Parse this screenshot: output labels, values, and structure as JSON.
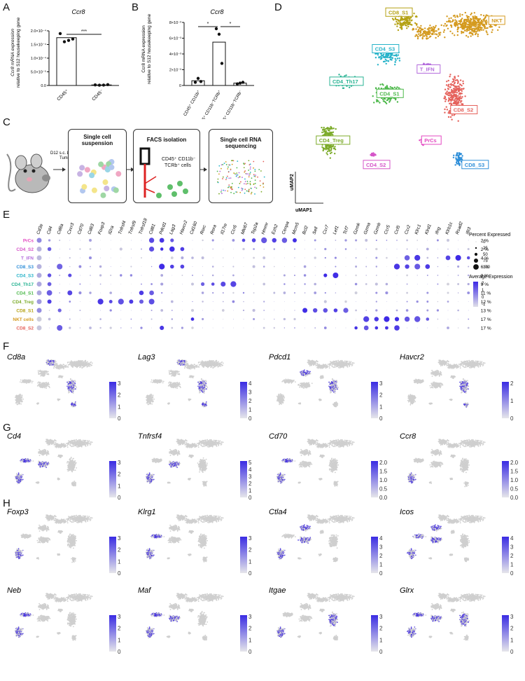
{
  "panels": {
    "A": {
      "letter": "A",
      "title": "Ccr8",
      "ylabel_line1": "Ccr8 mRNA expression",
      "ylabel_line2": "relative to S12 housekeeping gene",
      "yticks": [
        "2.0×10⁻⁴",
        "1.5×10⁻⁴",
        "1.0×10⁻⁴",
        "5.0×10⁻⁵",
        "0.0"
      ],
      "categories": [
        "CD45⁺",
        "CD45⁻"
      ],
      "significance": "***"
    },
    "B": {
      "letter": "B",
      "title": "Ccr8",
      "ylabel_line1": "Ccr8 mRNA expression",
      "ylabel_line2": "relative to S12 housekeeping gene",
      "yticks": [
        "8×10⁻³",
        "6×10⁻³",
        "4×10⁻³",
        "2×10⁻³",
        "0"
      ],
      "categories": [
        "CD45⁺ CD11b⁺",
        "CD45⁺ CD11b⁻TCRb⁺",
        "CD45⁺ CD11b⁻TCRb⁻"
      ],
      "significance": [
        "*",
        "*"
      ]
    },
    "C": {
      "letter": "C",
      "mouse_label_line1": "D12 s.c. LLC-OVA",
      "mouse_label_line2": "Tumor",
      "box1_line1": "Single cell",
      "box1_line2": "suspension",
      "box2_title": "FACS isolation",
      "box2_text_line1": "CD45⁺ CD11b⁻",
      "box2_text_line2": "TCRb⁺ cells",
      "box3_line1": "Single cell RNA",
      "box3_line2": "sequencing"
    },
    "D": {
      "letter": "D",
      "xaxis": "uMAP1",
      "yaxis": "uMAP2",
      "clusters": [
        {
          "name": "CD8_S1",
          "color": "#b5a215"
        },
        {
          "name": "NKT",
          "color": "#d49a1f"
        },
        {
          "name": "CD4_S3",
          "color": "#27b3c9"
        },
        {
          "name": "T_IFN",
          "color": "#b36bdc"
        },
        {
          "name": "CD4_Th17",
          "color": "#28b393"
        },
        {
          "name": "CD4_S1",
          "color": "#4cb84a"
        },
        {
          "name": "CD8_S2",
          "color": "#e5625c"
        },
        {
          "name": "CD4_Treg",
          "color": "#7cab2a"
        },
        {
          "name": "PrCs",
          "color": "#e348c1"
        },
        {
          "name": "CD4_S2",
          "color": "#d554c8"
        },
        {
          "name": "CD8_S3",
          "color": "#2f8fd9"
        }
      ]
    },
    "E": {
      "letter": "E",
      "genes": [
        "Cd3e",
        "Cd4",
        "Cd8a",
        "Cxcr3",
        "Cd70",
        "Cd83",
        "Foxp3",
        "Il2ra",
        "Tnfrsf4",
        "Tnfrsf9",
        "Tnfrsf18",
        "Cd81",
        "Pdcd1",
        "Lag3",
        "Havcr2",
        "Cd160",
        "Rorc",
        "Rora",
        "Il17re",
        "Ccr6",
        "Mki67",
        "Top2a",
        "Hmmr",
        "Ezh2",
        "Cenpa",
        "Mcm5",
        "Bcl2",
        "Sell",
        "Ccr7",
        "Lef1",
        "Tcf7",
        "Gzmk",
        "Gzma",
        "Gzmb",
        "Ccr5",
        "Ccl5",
        "Ccr2",
        "Klrc1",
        "Klrd1",
        "Ifng",
        "Klrb1c",
        "Rsad2",
        "Ifit3"
      ],
      "rows": [
        {
          "name": "PrCs",
          "color": "#e348c1",
          "pct": "2 %"
        },
        {
          "name": "CD4_S2",
          "color": "#d554c8",
          "pct": "2 %"
        },
        {
          "name": "T_IFN",
          "color": "#b36bdc",
          "pct": "4 %"
        },
        {
          "name": "CD8_S3",
          "color": "#2f8fd9",
          "pct": "6 %"
        },
        {
          "name": "CD4_S3",
          "color": "#27b3c9",
          "pct": "8 %"
        },
        {
          "name": "CD4_Th17",
          "color": "#28b393",
          "pct": "9 %"
        },
        {
          "name": "CD4_S1",
          "color": "#4cb84a",
          "pct": "11 %"
        },
        {
          "name": "CD4_Treg",
          "color": "#7cab2a",
          "pct": "12 %"
        },
        {
          "name": "CD8_S1",
          "color": "#b5a215",
          "pct": "13 %"
        },
        {
          "name": "NKT cells",
          "color": "#d49a1f",
          "pct": "17 %"
        },
        {
          "name": "CD8_S2",
          "color": "#e5625c",
          "pct": "17 %"
        }
      ],
      "legend_pct_title": "Percent Expressed",
      "legend_pct_values": [
        "0",
        "25",
        "50",
        "75",
        "100"
      ],
      "legend_avg_title": "Average Expression",
      "legend_avg_values": [
        "2",
        "1",
        "0",
        "-1"
      ]
    },
    "F": {
      "letter": "F",
      "genes": [
        {
          "name": "Cd8a",
          "ticks": [
            "3",
            "2",
            "1",
            "0"
          ]
        },
        {
          "name": "Lag3",
          "ticks": [
            "4",
            "3",
            "2",
            "1",
            "0"
          ]
        },
        {
          "name": "Pdcd1",
          "ticks": [
            "3",
            "2",
            "1",
            "0"
          ]
        },
        {
          "name": "Havcr2",
          "ticks": [
            "2",
            "1",
            "0"
          ]
        }
      ]
    },
    "G": {
      "letter": "G",
      "genes": [
        {
          "name": "Cd4",
          "ticks": [
            "3",
            "2",
            "1",
            "0"
          ]
        },
        {
          "name": "Tnfrsf4",
          "ticks": [
            "5",
            "4",
            "3",
            "2",
            "1",
            "0"
          ]
        },
        {
          "name": "Cd70",
          "ticks": [
            "2.0",
            "1.5",
            "1.0",
            "0.5",
            "0.0"
          ]
        },
        {
          "name": "Ccr8",
          "ticks": [
            "2.0",
            "1.5",
            "1.0",
            "0.5",
            "0.0"
          ]
        }
      ]
    },
    "H": {
      "letter": "H",
      "genes": [
        {
          "name": "Foxp3",
          "ticks": [
            "3",
            "2",
            "1",
            "0"
          ]
        },
        {
          "name": "Klrg1",
          "ticks": [
            "3",
            "2",
            "1",
            "0"
          ]
        },
        {
          "name": "Ctla4",
          "ticks": [
            "4",
            "3",
            "2",
            "1",
            "0"
          ]
        },
        {
          "name": "Icos",
          "ticks": [
            "4",
            "3",
            "2",
            "1",
            "0"
          ]
        },
        {
          "name": "Neb",
          "ticks": [
            "3",
            "2",
            "1",
            "0"
          ]
        },
        {
          "name": "Maf",
          "ticks": [
            "3",
            "2",
            "1",
            "0"
          ]
        },
        {
          "name": "Itgae",
          "ticks": [
            "3",
            "2",
            "1",
            "0"
          ]
        },
        {
          "name": "Glrx",
          "ticks": [
            "3",
            "2",
            "1",
            "0"
          ]
        }
      ]
    }
  },
  "chart_data": [
    {
      "type": "bar",
      "title": "Ccr8",
      "categories": [
        "CD45⁺",
        "CD45⁻"
      ],
      "values": [
        0.000175,
        2e-06
      ],
      "ylim": [
        0,
        0.0002
      ],
      "ylabel": "Ccr8 mRNA expression relative to S12 housekeeping gene"
    },
    {
      "type": "bar",
      "title": "Ccr8",
      "categories": [
        "CD45⁺ CD11b⁺",
        "CD45⁺ CD11b⁻TCRb⁺",
        "CD45⁺ CD11b⁻TCRb⁻"
      ],
      "values": [
        0.0006,
        0.0055,
        0.0003
      ],
      "ylim": [
        0,
        0.008
      ],
      "ylabel": "Ccr8 mRNA expression relative to S12 housekeeping gene"
    }
  ]
}
